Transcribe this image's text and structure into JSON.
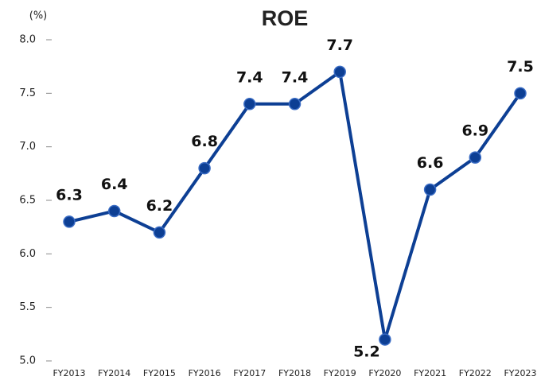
{
  "chart_data": {
    "type": "line",
    "title": "ROE",
    "y_label": "(%)",
    "categories": [
      "FY2013",
      "FY2014",
      "FY2015",
      "FY2016",
      "FY2017",
      "FY2018",
      "FY2019",
      "FY2020",
      "FY2021",
      "FY2022",
      "FY2023"
    ],
    "series": [
      {
        "name": "ROE",
        "color": "#0d3f94",
        "values": [
          6.3,
          6.4,
          6.2,
          6.8,
          7.4,
          7.4,
          7.7,
          5.2,
          6.6,
          6.9,
          7.5
        ]
      }
    ],
    "ylim": [
      5,
      8
    ],
    "yticks": [
      {
        "value": 5,
        "label": "5.0"
      },
      5.5,
      {
        "value": 6,
        "label": "6.0"
      },
      6.5,
      {
        "value": 7,
        "label": "7.0"
      },
      7.5,
      {
        "value": 8,
        "label": "8.0"
      }
    ],
    "grid": false
  }
}
